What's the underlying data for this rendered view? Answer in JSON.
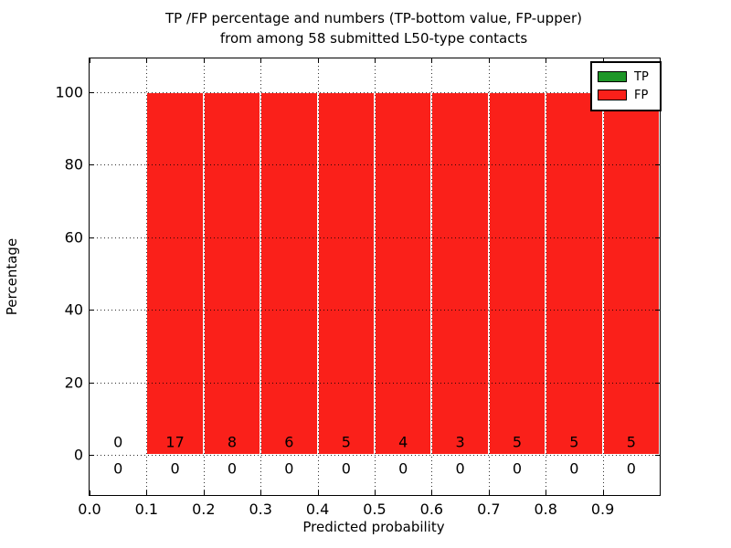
{
  "figure": {
    "title_line1": "TP /FP percentage and numbers (TP-bottom value, FP-upper)",
    "title_line2": "from among 58 submitted L50-type contacts",
    "background_color": "#ffffff"
  },
  "chart_data": {
    "type": "bar",
    "stacked": true,
    "title": "TP /FP percentage and numbers (TP-bottom value, FP-upper) from among 58 submitted L50-type contacts",
    "xlabel": "Predicted probability",
    "ylabel": "Percentage",
    "total_contacts": 58,
    "bin_edges": [
      0.0,
      0.1,
      0.2,
      0.3,
      0.4,
      0.5,
      0.6,
      0.7,
      0.8,
      0.9,
      1.0
    ],
    "x_tick_labels": [
      "0.0",
      "0.1",
      "0.2",
      "0.3",
      "0.4",
      "0.5",
      "0.6",
      "0.7",
      "0.8",
      "0.9"
    ],
    "x_tick_values": [
      0.0,
      0.1,
      0.2,
      0.3,
      0.4,
      0.5,
      0.6,
      0.7,
      0.8,
      0.9
    ],
    "y_ticks": [
      0,
      20,
      40,
      60,
      80,
      100
    ],
    "xlim": [
      0.0,
      1.0
    ],
    "ylim": [
      -11,
      109
    ],
    "grid": "dotted",
    "legend_position": "upper right",
    "series": [
      {
        "name": "TP",
        "color": "#1e9628",
        "percent": [
          0,
          0,
          0,
          0,
          0,
          0,
          0,
          0,
          0,
          0
        ],
        "counts": [
          0,
          0,
          0,
          0,
          0,
          0,
          0,
          0,
          0,
          0
        ]
      },
      {
        "name": "FP",
        "color": "#fa201a",
        "percent": [
          0,
          100,
          100,
          100,
          100,
          100,
          100,
          100,
          100,
          100
        ],
        "counts": [
          0,
          17,
          8,
          6,
          5,
          4,
          3,
          5,
          5,
          5
        ]
      }
    ]
  },
  "legend": {
    "items": [
      {
        "label": "TP",
        "color": "#1e9628"
      },
      {
        "label": "FP",
        "color": "#fa201a"
      }
    ]
  }
}
